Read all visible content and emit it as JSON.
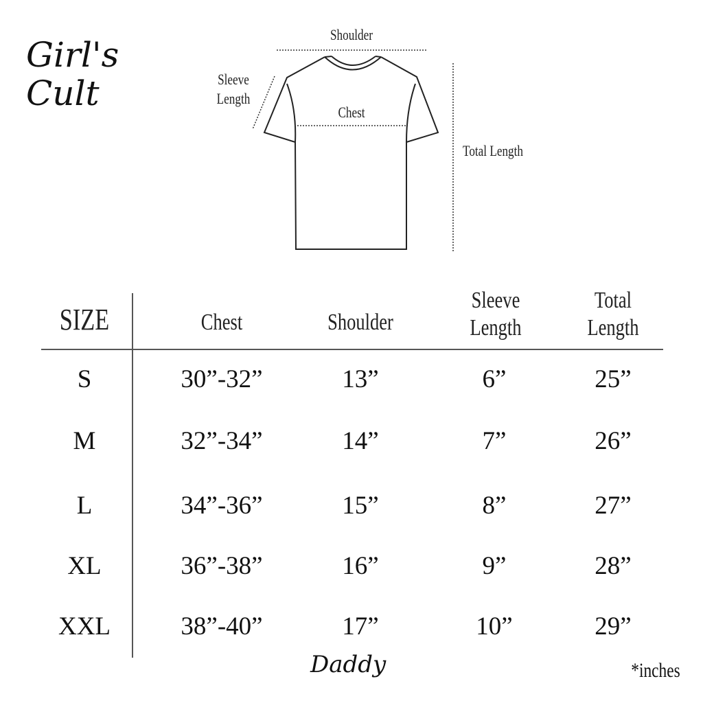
{
  "brand": {
    "logo_line1": "Girl's",
    "logo_line2": "Cult",
    "signature": "Daddy"
  },
  "diagram": {
    "shoulder": "Shoulder",
    "sleeve_line1": "Sleeve",
    "sleeve_line2": "Length",
    "chest": "Chest",
    "total_length": "Total Length"
  },
  "table": {
    "headers": [
      {
        "line1": "SIZE",
        "line2": ""
      },
      {
        "line1": "Chest",
        "line2": ""
      },
      {
        "line1": "Shoulder",
        "line2": ""
      },
      {
        "line1": "Sleeve",
        "line2": "Length"
      },
      {
        "line1": "Total",
        "line2": "Length"
      }
    ],
    "rows": [
      [
        "S",
        "30”-32”",
        "13”",
        "6”",
        "25”"
      ],
      [
        "M",
        "32”-34”",
        "14”",
        "7”",
        "26”"
      ],
      [
        "L",
        "34”-36”",
        "15”",
        "8”",
        "27”"
      ],
      [
        "XL",
        "36”-38”",
        "16”",
        "9”",
        "28”"
      ],
      [
        "XXL",
        "38”-40”",
        "17”",
        "10”",
        "29”"
      ]
    ]
  },
  "unit_note": "*inches"
}
